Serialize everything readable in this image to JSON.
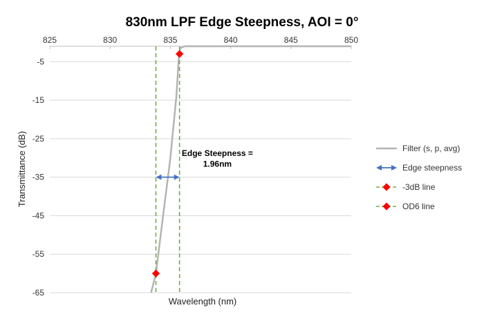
{
  "chart_data": {
    "type": "line",
    "title": "830nm LPF Edge Steepness, AOI = 0°",
    "xlabel": "Wavelength (nm)",
    "ylabel": "Transmittance (dB)",
    "xlim": [
      825,
      850
    ],
    "ylim": [
      -65,
      -1
    ],
    "x_ticks": [
      825,
      830,
      835,
      840,
      845,
      850
    ],
    "y_ticks": [
      -5,
      -15,
      -25,
      -35,
      -45,
      -55,
      -65
    ],
    "x_axis_position": "top",
    "grid": {
      "horizontal": true,
      "vertical": false
    },
    "legend_position": "right",
    "series": [
      {
        "name": "Filter (s, p, avg)",
        "color": "#b3b3b3",
        "kind": "line",
        "points": [
          [
            833.4,
            -65
          ],
          [
            833.8,
            -60
          ],
          [
            834.4,
            -45
          ],
          [
            835.0,
            -30
          ],
          [
            835.5,
            -14
          ],
          [
            835.7,
            -4
          ],
          [
            835.8,
            -1.5
          ],
          [
            836.2,
            -0.6
          ],
          [
            850,
            -0.6
          ]
        ]
      },
      {
        "name": "Edge steepness",
        "color": "#4472c4",
        "kind": "double-arrow",
        "points": [
          [
            833.8,
            -35
          ],
          [
            835.76,
            -35
          ]
        ]
      },
      {
        "name": "-3dB line",
        "color": "#70ad47",
        "kind": "dashed-vertical",
        "x": 835.76,
        "marker_color": "#ff0000",
        "marker_point": [
          835.76,
          -3
        ]
      },
      {
        "name": "OD6 line",
        "color": "#70ad47",
        "kind": "dashed-vertical",
        "x": 833.8,
        "marker_color": "#ff0000",
        "marker_point": [
          833.8,
          -60
        ]
      }
    ],
    "annotations": [
      {
        "text": "Edge Steepness =",
        "x": 838.9,
        "y": -29.5
      },
      {
        "text": "1.96nm",
        "x": 838.9,
        "y": -32.3
      }
    ]
  }
}
